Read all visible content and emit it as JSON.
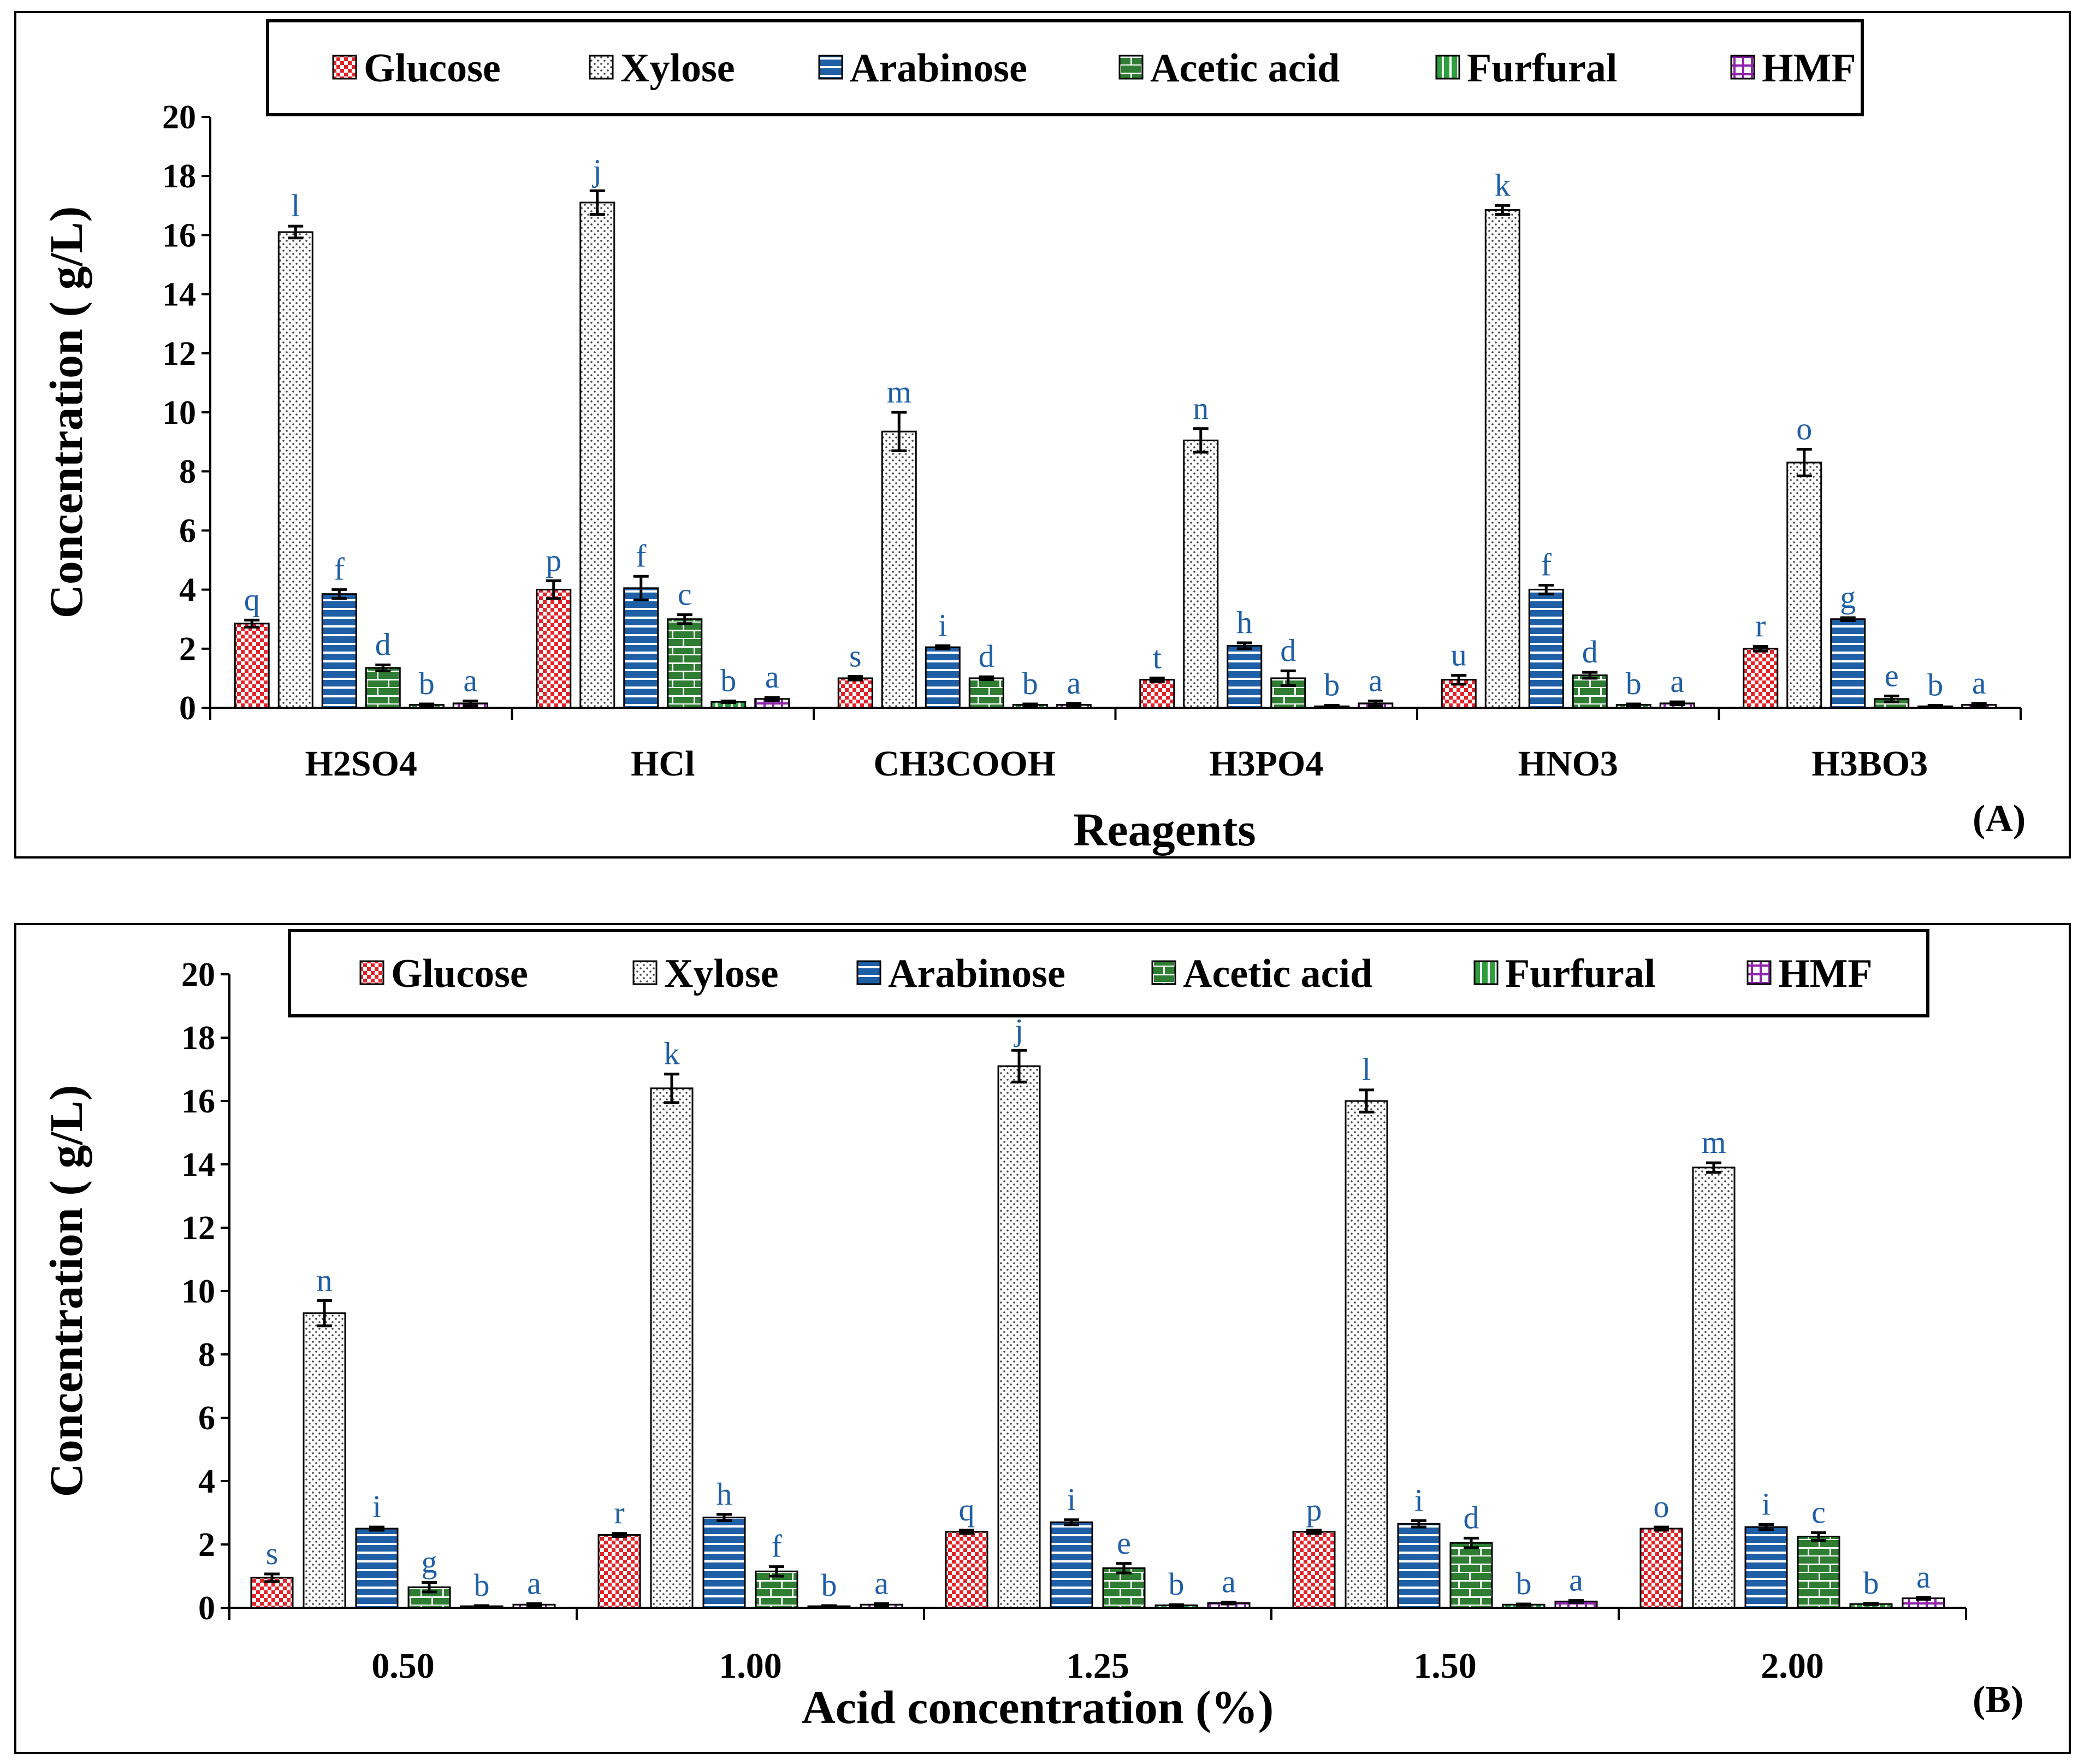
{
  "chart_data": [
    {
      "panel": "(A)",
      "type": "bar",
      "xlabel": "Reagents",
      "ylabel": "Concentration ( g/L)",
      "ylim": [
        0,
        20
      ],
      "yticks": [
        "0",
        "2",
        "4",
        "6",
        "8",
        "10",
        "12",
        "14",
        "16",
        "18",
        "20"
      ],
      "categories": [
        "H2SO4",
        "HCl",
        "CH3COOH",
        "H3PO4",
        "HNO3",
        "H3BO3"
      ],
      "legend": [
        "Glucose",
        "Xylose",
        "Arabinose",
        "Acetic acid",
        "Furfural",
        "HMF"
      ],
      "legend_position": "top",
      "series": [
        {
          "name": "Glucose",
          "color": "#e0242a",
          "pattern": "checker",
          "values": [
            2.85,
            4.0,
            1.0,
            0.95,
            0.95,
            2.0
          ],
          "errors": [
            0.12,
            0.3,
            0.06,
            0.06,
            0.15,
            0.08
          ],
          "letters": [
            "q",
            "p",
            "s",
            "t",
            "u",
            "r"
          ]
        },
        {
          "name": "Xylose",
          "color": "#ffffff",
          "pattern": "dots",
          "values": [
            16.1,
            17.1,
            9.35,
            9.05,
            16.85,
            8.3
          ],
          "errors": [
            0.2,
            0.4,
            0.65,
            0.4,
            0.15,
            0.45
          ],
          "letters": [
            "l",
            "j",
            "m",
            "n",
            "k",
            "o"
          ]
        },
        {
          "name": "Arabinose",
          "color": "#1f5fa6",
          "pattern": "hstripes",
          "values": [
            3.85,
            4.05,
            2.05,
            2.1,
            4.0,
            3.0
          ],
          "errors": [
            0.15,
            0.4,
            0.05,
            0.1,
            0.15,
            0.05
          ],
          "letters": [
            "f",
            "f",
            "i",
            "h",
            "f",
            "g"
          ]
        },
        {
          "name": "Acetic acid",
          "color": "#2e7d32",
          "pattern": "bricks",
          "values": [
            1.35,
            3.0,
            1.0,
            1.0,
            1.1,
            0.3
          ],
          "errors": [
            0.1,
            0.15,
            0.05,
            0.25,
            0.1,
            0.1
          ],
          "letters": [
            "d",
            "c",
            "d",
            "d",
            "d",
            "e"
          ]
        },
        {
          "name": "Furfural",
          "color": "#2e9e3e",
          "pattern": "vstripes",
          "values": [
            0.1,
            0.2,
            0.1,
            0.05,
            0.1,
            0.05
          ],
          "errors": [
            0.03,
            0.03,
            0.03,
            0.03,
            0.03,
            0.03
          ],
          "letters": [
            "b",
            "b",
            "b",
            "b",
            "b",
            "b"
          ]
        },
        {
          "name": "HMF",
          "color": "#8e24aa",
          "pattern": "plus",
          "values": [
            0.15,
            0.3,
            0.1,
            0.15,
            0.15,
            0.1
          ],
          "errors": [
            0.08,
            0.05,
            0.05,
            0.08,
            0.05,
            0.05
          ],
          "letters": [
            "a",
            "a",
            "a",
            "a",
            "a",
            "a"
          ]
        }
      ]
    },
    {
      "panel": "(B)",
      "type": "bar",
      "xlabel": "Acid concentration (%)",
      "ylabel": "Concentration ( g/L)",
      "ylim": [
        0,
        20
      ],
      "yticks": [
        "0",
        "2",
        "4",
        "6",
        "8",
        "10",
        "12",
        "14",
        "16",
        "18",
        "20"
      ],
      "categories": [
        "0.50",
        "1.00",
        "1.25",
        "1.50",
        "2.00"
      ],
      "legend": [
        "Glucose",
        "Xylose",
        "Arabinose",
        "Acetic acid",
        "Furfural",
        "HMF"
      ],
      "legend_position": "top",
      "series": [
        {
          "name": "Glucose",
          "color": "#e0242a",
          "pattern": "checker",
          "values": [
            0.95,
            2.3,
            2.4,
            2.4,
            2.5
          ],
          "errors": [
            0.12,
            0.05,
            0.05,
            0.05,
            0.05
          ],
          "letters": [
            "s",
            "r",
            "q",
            "p",
            "o"
          ]
        },
        {
          "name": "Xylose",
          "color": "#ffffff",
          "pattern": "dots",
          "values": [
            9.3,
            16.4,
            17.1,
            16.0,
            13.9
          ],
          "errors": [
            0.4,
            0.45,
            0.5,
            0.35,
            0.15
          ],
          "letters": [
            "n",
            "k",
            "j",
            "l",
            "m"
          ]
        },
        {
          "name": "Arabinose",
          "color": "#1f5fa6",
          "pattern": "hstripes",
          "values": [
            2.5,
            2.85,
            2.7,
            2.65,
            2.55
          ],
          "errors": [
            0.05,
            0.1,
            0.08,
            0.1,
            0.08
          ],
          "letters": [
            "i",
            "h",
            "i",
            "i",
            "i"
          ]
        },
        {
          "name": "Acetic acid",
          "color": "#2e7d32",
          "pattern": "bricks",
          "values": [
            0.65,
            1.15,
            1.25,
            2.05,
            2.25
          ],
          "errors": [
            0.15,
            0.15,
            0.15,
            0.15,
            0.12
          ],
          "letters": [
            "g",
            "f",
            "e",
            "d",
            "c"
          ]
        },
        {
          "name": "Furfural",
          "color": "#2e9e3e",
          "pattern": "vstripes",
          "values": [
            0.05,
            0.05,
            0.08,
            0.1,
            0.12
          ],
          "errors": [
            0.02,
            0.02,
            0.02,
            0.02,
            0.02
          ],
          "letters": [
            "b",
            "b",
            "b",
            "b",
            "b"
          ]
        },
        {
          "name": "HMF",
          "color": "#8e24aa",
          "pattern": "plus",
          "values": [
            0.1,
            0.1,
            0.15,
            0.2,
            0.3
          ],
          "errors": [
            0.03,
            0.03,
            0.03,
            0.03,
            0.03
          ],
          "letters": [
            "a",
            "a",
            "a",
            "a",
            "a"
          ]
        }
      ]
    }
  ]
}
